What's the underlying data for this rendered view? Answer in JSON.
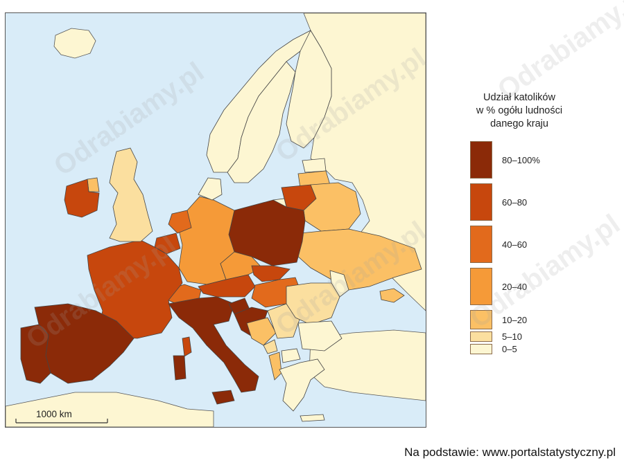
{
  "legend": {
    "title_lines": [
      "Udział katolików",
      "w % ogółu ludności",
      "danego kraju"
    ],
    "items": [
      {
        "label": "80–100%",
        "color": "#8b2a08"
      },
      {
        "label": "60–80",
        "color": "#c7470d"
      },
      {
        "label": "40–60",
        "color": "#e26a1c"
      },
      {
        "label": "20–40",
        "color": "#f59a38"
      },
      {
        "label": "10–20",
        "color": "#fbc065"
      },
      {
        "label": "5–10",
        "color": "#fbdf9f"
      },
      {
        "label": "0–5",
        "color": "#fdf6d2"
      }
    ]
  },
  "scale_bar": {
    "label": "1000 km"
  },
  "source": "Na podstawie: www.portalstatystyczny.pl",
  "watermark": "Odrabiamy.pl",
  "colors": {
    "sea": "#d9ecf8",
    "land_outside": "#fdf6d2",
    "border": "#333333"
  }
}
